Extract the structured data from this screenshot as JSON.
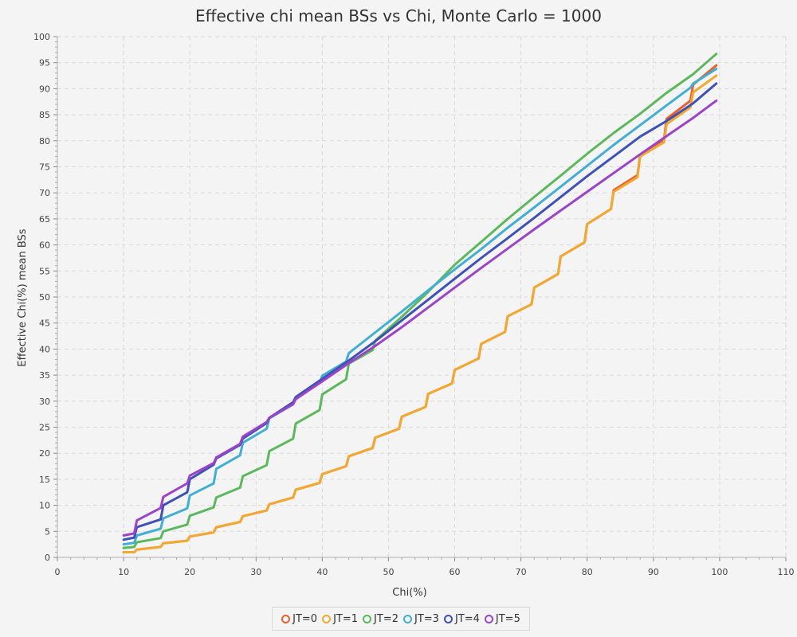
{
  "chart_data": {
    "type": "line",
    "title": "Effective chi mean BSs vs Chi, Monte Carlo = 1000",
    "xlabel": "Chi(%)",
    "ylabel": "Effective Chi(%) mean BSs",
    "xlim": [
      0,
      110
    ],
    "ylim": [
      0,
      100
    ],
    "xticks": [
      0,
      10,
      20,
      30,
      40,
      50,
      60,
      70,
      80,
      90,
      100,
      110
    ],
    "yticks": [
      0,
      5,
      10,
      15,
      20,
      25,
      30,
      35,
      40,
      45,
      50,
      55,
      60,
      65,
      70,
      75,
      80,
      85,
      90,
      95,
      100
    ],
    "grid": true,
    "legend_position": "bottom",
    "x_range": [
      10,
      99.5
    ],
    "series": [
      {
        "name": "JT=0",
        "color": "#e8602c",
        "points": [
          [
            10,
            1
          ],
          [
            11.6,
            1
          ],
          [
            12,
            1.5
          ],
          [
            15.6,
            2
          ],
          [
            16,
            2.7
          ],
          [
            19.6,
            3.2
          ],
          [
            20,
            4
          ],
          [
            23.6,
            4.8
          ],
          [
            24,
            5.8
          ],
          [
            27.6,
            6.8
          ],
          [
            28,
            7.9
          ],
          [
            31.6,
            9
          ],
          [
            32,
            10.2
          ],
          [
            35.6,
            11.5
          ],
          [
            36,
            13
          ],
          [
            39.6,
            14.3
          ],
          [
            40,
            16
          ],
          [
            43.6,
            17.5
          ],
          [
            44,
            19.4
          ],
          [
            47.6,
            21
          ],
          [
            48,
            23
          ],
          [
            51.6,
            24.7
          ],
          [
            52,
            27
          ],
          [
            55.6,
            28.9
          ],
          [
            56,
            31.4
          ],
          [
            59.6,
            33.4
          ],
          [
            60,
            36
          ],
          [
            63.6,
            38.2
          ],
          [
            64,
            41
          ],
          [
            67.6,
            43.3
          ],
          [
            68,
            46.3
          ],
          [
            71.6,
            48.6
          ],
          [
            72,
            51.8
          ],
          [
            75.6,
            54.4
          ],
          [
            76,
            57.8
          ],
          [
            79.6,
            60.5
          ],
          [
            80,
            64
          ],
          [
            83.6,
            66.9
          ],
          [
            84,
            70.5
          ],
          [
            87.6,
            73.4
          ],
          [
            88,
            77.3
          ],
          [
            91.6,
            80.1
          ],
          [
            92,
            84.2
          ],
          [
            95.6,
            87.7
          ],
          [
            96,
            90.8
          ],
          [
            99.5,
            94.5
          ]
        ]
      },
      {
        "name": "JT=1",
        "color": "#f2a932",
        "points": [
          [
            10,
            1
          ],
          [
            11.6,
            1
          ],
          [
            12,
            1.5
          ],
          [
            15.6,
            2
          ],
          [
            16,
            2.7
          ],
          [
            19.6,
            3.2
          ],
          [
            20,
            4
          ],
          [
            23.6,
            4.8
          ],
          [
            24,
            5.8
          ],
          [
            27.6,
            6.8
          ],
          [
            28,
            7.9
          ],
          [
            31.6,
            9
          ],
          [
            32,
            10.2
          ],
          [
            35.6,
            11.5
          ],
          [
            36,
            13
          ],
          [
            39.6,
            14.3
          ],
          [
            40,
            16
          ],
          [
            43.6,
            17.5
          ],
          [
            44,
            19.4
          ],
          [
            47.6,
            21
          ],
          [
            48,
            23
          ],
          [
            51.6,
            24.7
          ],
          [
            52,
            27
          ],
          [
            55.6,
            28.9
          ],
          [
            56,
            31.4
          ],
          [
            59.6,
            33.4
          ],
          [
            60,
            36
          ],
          [
            63.6,
            38.2
          ],
          [
            64,
            41
          ],
          [
            67.6,
            43.3
          ],
          [
            68,
            46.3
          ],
          [
            71.6,
            48.6
          ],
          [
            72,
            51.8
          ],
          [
            75.6,
            54.4
          ],
          [
            76,
            57.8
          ],
          [
            79.6,
            60.5
          ],
          [
            80,
            64
          ],
          [
            83.6,
            66.9
          ],
          [
            84,
            70.2
          ],
          [
            87.6,
            73
          ],
          [
            88,
            77
          ],
          [
            91.6,
            79.7
          ],
          [
            92,
            83.2
          ],
          [
            95.6,
            86.4
          ],
          [
            96,
            89.3
          ],
          [
            99.5,
            92.5
          ]
        ]
      },
      {
        "name": "JT=2",
        "color": "#5cb85c",
        "points": [
          [
            10,
            1.8
          ],
          [
            11.6,
            2
          ],
          [
            12,
            2.9
          ],
          [
            15.6,
            3.7
          ],
          [
            16,
            5
          ],
          [
            19.6,
            6.3
          ],
          [
            20,
            8
          ],
          [
            23.6,
            9.6
          ],
          [
            24,
            11.5
          ],
          [
            27.6,
            13.4
          ],
          [
            28,
            15.6
          ],
          [
            31.6,
            17.7
          ],
          [
            32,
            20.4
          ],
          [
            35.6,
            22.8
          ],
          [
            36,
            25.7
          ],
          [
            39.6,
            28.3
          ],
          [
            40,
            31.3
          ],
          [
            43.6,
            34.2
          ],
          [
            44,
            37.2
          ],
          [
            47.6,
            39.8
          ],
          [
            48,
            41.6
          ],
          [
            52,
            46.2
          ],
          [
            56,
            51
          ],
          [
            60,
            56.2
          ],
          [
            64,
            60.6
          ],
          [
            68,
            65
          ],
          [
            72,
            69.2
          ],
          [
            76,
            73.3
          ],
          [
            80,
            77.5
          ],
          [
            84,
            81.5
          ],
          [
            88,
            85.2
          ],
          [
            92,
            89.2
          ],
          [
            96,
            92.8
          ],
          [
            99.5,
            96.7
          ]
        ]
      },
      {
        "name": "JT=3",
        "color": "#42aed1",
        "points": [
          [
            10,
            2.5
          ],
          [
            11.6,
            2.8
          ],
          [
            12,
            4.2
          ],
          [
            15.6,
            5.5
          ],
          [
            16,
            7.5
          ],
          [
            19.6,
            9.4
          ],
          [
            20,
            11.9
          ],
          [
            23.6,
            14.2
          ],
          [
            24,
            17
          ],
          [
            27.6,
            19.6
          ],
          [
            28,
            22
          ],
          [
            31.6,
            24.7
          ],
          [
            32,
            26.7
          ],
          [
            35.6,
            29.4
          ],
          [
            36,
            30.6
          ],
          [
            39.6,
            33.5
          ],
          [
            40,
            34.9
          ],
          [
            43.6,
            37.6
          ],
          [
            44,
            39.2
          ],
          [
            48,
            43.2
          ],
          [
            52,
            47.2
          ],
          [
            56,
            51.3
          ],
          [
            60,
            55.3
          ],
          [
            64,
            59.2
          ],
          [
            68,
            63.3
          ],
          [
            72,
            67.2
          ],
          [
            76,
            71.2
          ],
          [
            80,
            75.2
          ],
          [
            84,
            79.2
          ],
          [
            88,
            83
          ],
          [
            92,
            86.8
          ],
          [
            95.6,
            90.2
          ],
          [
            96,
            91
          ],
          [
            99.5,
            93.8
          ]
        ]
      },
      {
        "name": "JT=4",
        "color": "#3f51b5",
        "points": [
          [
            10,
            3.4
          ],
          [
            11.6,
            3.8
          ],
          [
            12,
            5.8
          ],
          [
            15.6,
            7.3
          ],
          [
            16,
            10
          ],
          [
            19.6,
            12.5
          ],
          [
            20,
            15
          ],
          [
            23.6,
            17.8
          ],
          [
            24,
            19
          ],
          [
            27.6,
            21.6
          ],
          [
            28,
            22.8
          ],
          [
            31.6,
            25.8
          ],
          [
            32,
            26.8
          ],
          [
            35.6,
            29.8
          ],
          [
            36,
            30.8
          ],
          [
            40,
            34.3
          ],
          [
            44,
            37.8
          ],
          [
            48,
            41.5
          ],
          [
            52,
            45.5
          ],
          [
            56,
            49.5
          ],
          [
            60,
            53.5
          ],
          [
            64,
            57.5
          ],
          [
            68,
            61.3
          ],
          [
            72,
            65.2
          ],
          [
            76,
            69.2
          ],
          [
            80,
            73.2
          ],
          [
            84,
            77
          ],
          [
            88,
            80.8
          ],
          [
            92,
            83.8
          ],
          [
            96,
            87.2
          ],
          [
            99.5,
            91
          ]
        ]
      },
      {
        "name": "JT=5",
        "color": "#9b44c7",
        "points": [
          [
            10,
            4.2
          ],
          [
            11.6,
            4.6
          ],
          [
            12,
            7.1
          ],
          [
            15.6,
            9.5
          ],
          [
            16,
            11.6
          ],
          [
            19.6,
            14.2
          ],
          [
            20,
            15.7
          ],
          [
            23.6,
            18.1
          ],
          [
            24,
            19.2
          ],
          [
            27.6,
            21.8
          ],
          [
            28,
            23.2
          ],
          [
            31.6,
            26
          ],
          [
            32,
            26.8
          ],
          [
            35.6,
            29.4
          ],
          [
            36,
            30.4
          ],
          [
            40,
            33.8
          ],
          [
            44,
            37.3
          ],
          [
            48,
            40.6
          ],
          [
            52,
            44.2
          ],
          [
            56,
            48
          ],
          [
            60,
            51.8
          ],
          [
            64,
            55.6
          ],
          [
            68,
            59.3
          ],
          [
            72,
            63
          ],
          [
            76,
            66.6
          ],
          [
            80,
            70.2
          ],
          [
            84,
            73.8
          ],
          [
            88,
            77.4
          ],
          [
            92,
            80.9
          ],
          [
            96,
            84.4
          ],
          [
            99.5,
            87.7
          ]
        ]
      }
    ]
  }
}
